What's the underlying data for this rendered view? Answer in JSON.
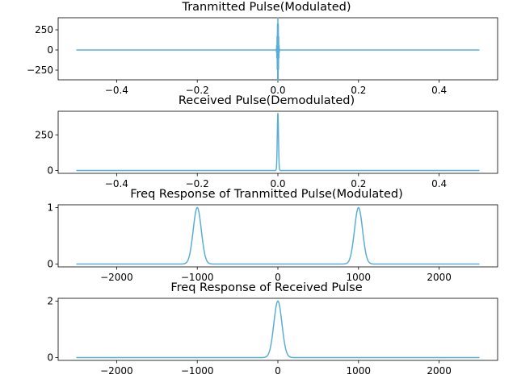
{
  "figure": {
    "background": "#ffffff",
    "line_color": "#5aaed6"
  },
  "chart_data": [
    {
      "type": "line",
      "title": "Tranmitted Pulse(Modulated)",
      "xlim": [
        -0.5,
        0.5
      ],
      "ylim": [
        -370,
        400
      ],
      "xticks": [
        -0.4,
        -0.2,
        0.0,
        0.2,
        0.4
      ],
      "xticklabels": [
        "−0.4",
        "−0.2",
        "0.0",
        "0.2",
        "0.4"
      ],
      "yticks": [
        -250,
        0,
        250
      ],
      "yticklabels": [
        "−250",
        "0",
        "250"
      ],
      "series": [
        {
          "kind": "modulated_pulse",
          "baseline": 0,
          "center": 0,
          "peak_amplitude": 400,
          "envelope_sigma": 0.0015,
          "carrier_frequency": 1000,
          "x_range": [
            -0.5,
            0.5
          ]
        }
      ]
    },
    {
      "type": "line",
      "title": "Received Pulse(Demodulated)",
      "xlim": [
        -0.5,
        0.5
      ],
      "ylim": [
        -20,
        415
      ],
      "xticks": [
        -0.4,
        -0.2,
        0.0,
        0.2,
        0.4
      ],
      "xticklabels": [
        "−0.4",
        "−0.2",
        "0.0",
        "0.2",
        "0.4"
      ],
      "yticks": [
        0,
        250
      ],
      "yticklabels": [
        "0",
        "250"
      ],
      "series": [
        {
          "kind": "gaussian",
          "baseline": 0,
          "center": 0,
          "peak": 400,
          "sigma": 0.0015,
          "x_range": [
            -0.5,
            0.5
          ]
        }
      ]
    },
    {
      "type": "line",
      "title": "Freq Response of Tranmitted Pulse(Modulated)",
      "xlim": [
        -2500,
        2500
      ],
      "ylim": [
        -0.05,
        1.05
      ],
      "xticks": [
        -2000,
        -1000,
        0,
        1000,
        2000
      ],
      "xticklabels": [
        "−2000",
        "−1000",
        "0",
        "1000",
        "2000"
      ],
      "yticks": [
        0,
        1
      ],
      "yticklabels": [
        "0",
        "1"
      ],
      "series": [
        {
          "kind": "gaussian_peaks",
          "baseline": 0,
          "peaks": [
            {
              "center": -1000,
              "height": 1,
              "sigma": 50
            },
            {
              "center": 1000,
              "height": 1,
              "sigma": 50
            }
          ],
          "x_range": [
            -2500,
            2500
          ]
        }
      ]
    },
    {
      "type": "line",
      "title": "Freq Response of Received Pulse",
      "xlim": [
        -2500,
        2500
      ],
      "ylim": [
        -0.1,
        2.1
      ],
      "xticks": [
        -2000,
        -1000,
        0,
        1000,
        2000
      ],
      "xticklabels": [
        "−2000",
        "−1000",
        "0",
        "1000",
        "2000"
      ],
      "yticks": [
        0,
        2
      ],
      "yticklabels": [
        "0",
        "2"
      ],
      "series": [
        {
          "kind": "gaussian_peaks",
          "baseline": 0,
          "peaks": [
            {
              "center": 0,
              "height": 2,
              "sigma": 50
            }
          ],
          "x_range": [
            -2500,
            2500
          ]
        }
      ]
    }
  ]
}
